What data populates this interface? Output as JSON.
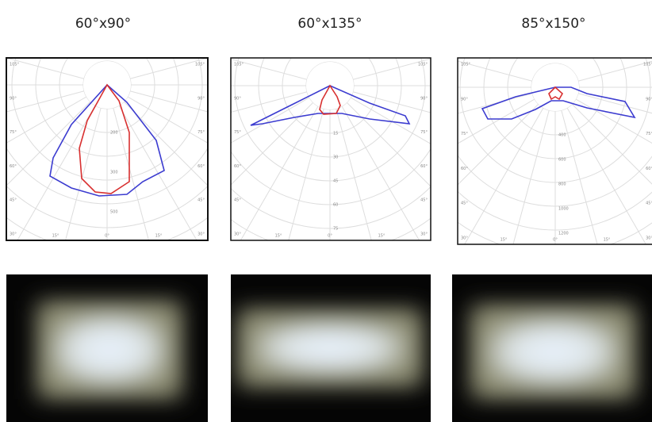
{
  "panels": [
    {
      "title": "60°x90°",
      "side_labels": [
        "105°",
        "90°",
        "75°",
        "60°",
        "45°",
        "30°"
      ],
      "bottom_labels": [
        "15°",
        "0°",
        "15°"
      ],
      "radial_labels": [
        "200",
        "300",
        "500"
      ]
    },
    {
      "title": "60°x135°",
      "side_labels": [
        "105°",
        "90°",
        "75°",
        "60°",
        "45°",
        "30°"
      ],
      "bottom_labels": [
        "15°",
        "0°",
        "15°"
      ],
      "radial_labels": [
        "15",
        "30",
        "45",
        "60",
        "75"
      ]
    },
    {
      "title": "85°x150°",
      "side_labels": [
        "105°",
        "90°",
        "75°",
        "60°",
        "45°",
        "30°"
      ],
      "bottom_labels": [
        "15°",
        "0°",
        "15°"
      ],
      "radial_labels": [
        "400",
        "600",
        "800",
        "1000",
        "1200"
      ]
    }
  ]
}
